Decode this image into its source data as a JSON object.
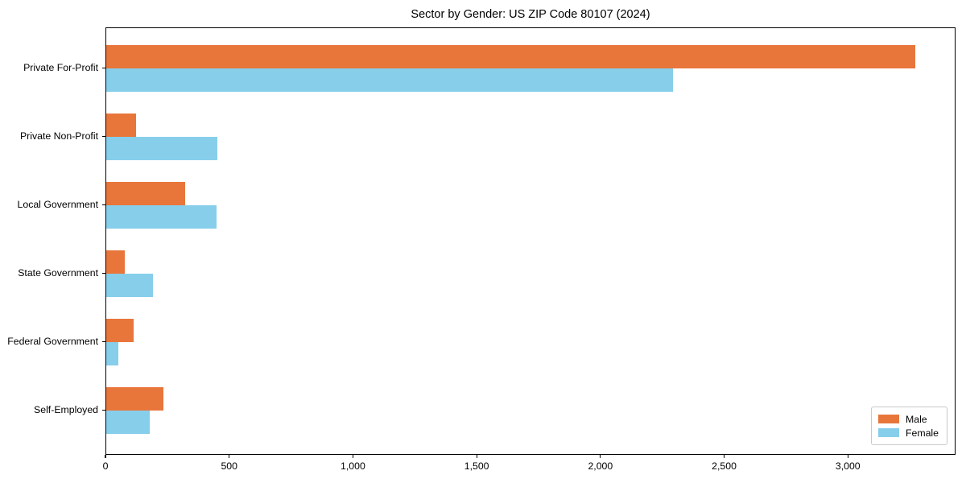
{
  "chart_data": {
    "type": "bar",
    "orientation": "horizontal",
    "title": "Sector by Gender: US ZIP Code 80107 (2024)",
    "categories": [
      "Private For-Profit",
      "Private Non-Profit",
      "Local Government",
      "State Government",
      "Federal Government",
      "Self-Employed"
    ],
    "series": [
      {
        "name": "Male",
        "color": "#e8763b",
        "values": [
          3270,
          120,
          320,
          75,
          110,
          230
        ]
      },
      {
        "name": "Female",
        "color": "#87ceeb",
        "values": [
          2290,
          450,
          445,
          190,
          50,
          175
        ]
      }
    ],
    "xlabel": "",
    "ylabel": "",
    "xlim": [
      0,
      3435
    ],
    "xticks": [
      0,
      500,
      1000,
      1500,
      2000,
      2500,
      3000
    ],
    "xtick_labels": [
      "0",
      "500",
      "1,000",
      "1,500",
      "2,000",
      "2,500",
      "3,000"
    ],
    "grid": false,
    "legend": {
      "position": "lower right"
    },
    "colors": {
      "axis": "#000000",
      "background": "#ffffff"
    }
  }
}
